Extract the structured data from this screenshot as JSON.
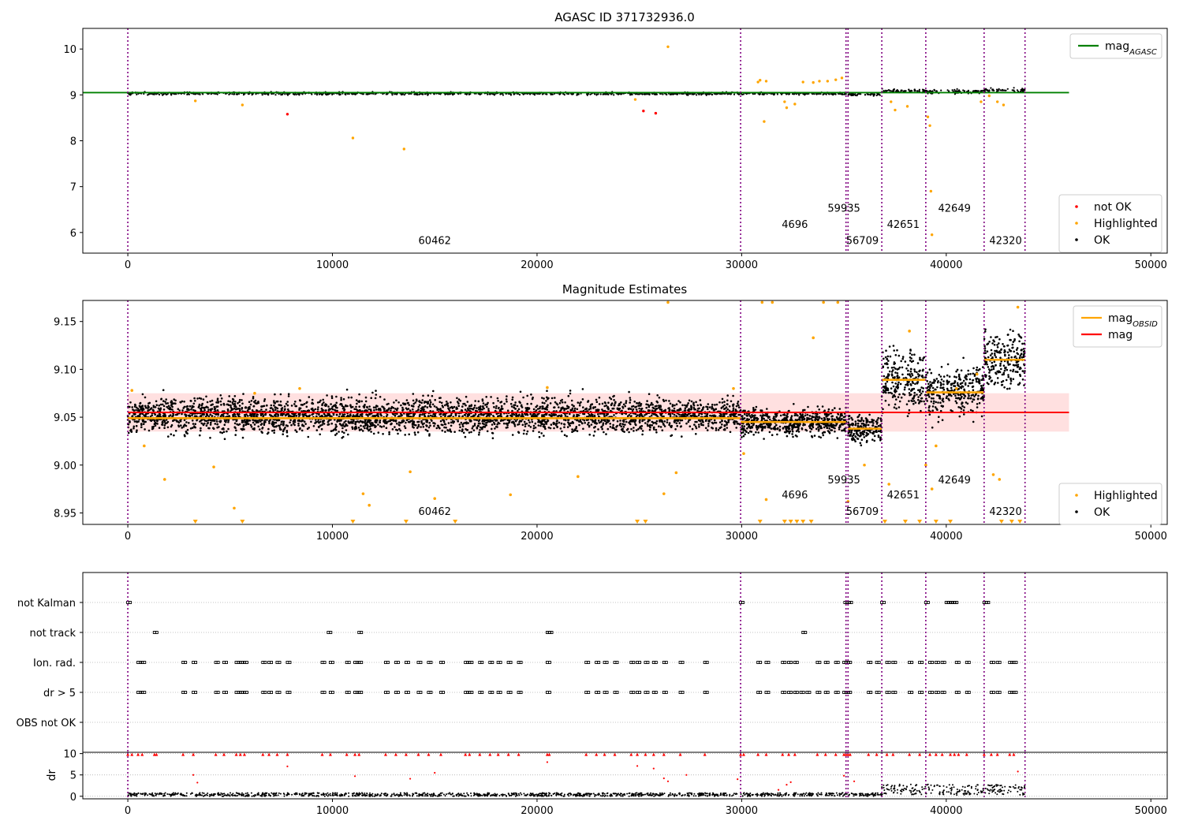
{
  "chart_data": [
    {
      "type": "scatter",
      "panel": "magnitude-agasc",
      "title": "AGASC ID 371732936.0",
      "xlim": [
        -2200,
        50800
      ],
      "ylim": [
        5.55,
        10.45
      ],
      "xticks": [
        0,
        10000,
        20000,
        30000,
        40000,
        50000
      ],
      "yticks": [
        6,
        7,
        8,
        9,
        10
      ],
      "grid": false,
      "obsid_boundaries": [
        0,
        29950,
        35100,
        35200,
        36850,
        39000,
        41850,
        43850
      ],
      "obsid_labels": [
        {
          "text": "60462",
          "x": 15000,
          "y": 5.75
        },
        {
          "text": "4696",
          "x": 32600,
          "y": 6.1
        },
        {
          "text": "59935",
          "x": 35000,
          "y": 6.45
        },
        {
          "text": "56709",
          "x": 35900,
          "y": 5.75
        },
        {
          "text": "42651",
          "x": 37900,
          "y": 6.1
        },
        {
          "text": "42649",
          "x": 40400,
          "y": 6.45
        },
        {
          "text": "42320",
          "x": 42900,
          "y": 5.75
        }
      ],
      "reference_line": {
        "name": "mag_AGASC",
        "value": 9.05,
        "x_range": [
          -2200,
          46000
        ],
        "color": "#008000"
      },
      "segments": [
        {
          "x0": 0,
          "x1": 29950,
          "level": 9.03,
          "spread": 0.03
        },
        {
          "x0": 29950,
          "x1": 35100,
          "level": 9.03,
          "spread": 0.03
        },
        {
          "x0": 35200,
          "x1": 36850,
          "level": 9.01,
          "spread": 0.03
        },
        {
          "x0": 36850,
          "x1": 39000,
          "level": 9.09,
          "spread": 0.04
        },
        {
          "x0": 39000,
          "x1": 39900,
          "level": 9.07,
          "spread": 0.04
        },
        {
          "x0": 40000,
          "x1": 41850,
          "level": 9.07,
          "spread": 0.04
        },
        {
          "x0": 41850,
          "x1": 43850,
          "level": 9.1,
          "spread": 0.04
        }
      ],
      "highlighted_points": [
        [
          3300,
          8.87
        ],
        [
          5600,
          8.78
        ],
        [
          11000,
          8.06
        ],
        [
          13500,
          7.82
        ],
        [
          24800,
          8.9
        ],
        [
          26400,
          10.05
        ],
        [
          30800,
          9.28
        ],
        [
          30900,
          9.32
        ],
        [
          31200,
          9.3
        ],
        [
          31100,
          8.42
        ],
        [
          32100,
          8.85
        ],
        [
          32200,
          8.72
        ],
        [
          32600,
          8.8
        ],
        [
          33000,
          9.28
        ],
        [
          33500,
          9.27
        ],
        [
          33800,
          9.3
        ],
        [
          34200,
          9.3
        ],
        [
          34600,
          9.33
        ],
        [
          34900,
          9.37
        ],
        [
          37300,
          8.85
        ],
        [
          37500,
          8.67
        ],
        [
          38100,
          8.75
        ],
        [
          39100,
          8.52
        ],
        [
          39200,
          8.33
        ],
        [
          39250,
          6.9
        ],
        [
          39300,
          5.95
        ],
        [
          41700,
          8.85
        ],
        [
          42100,
          8.98
        ],
        [
          42500,
          8.85
        ],
        [
          42800,
          8.78
        ]
      ],
      "not_ok_points": [
        [
          7800,
          8.58
        ],
        [
          25200,
          8.65
        ],
        [
          25800,
          8.6
        ]
      ],
      "legends": [
        {
          "placement": "upper-right",
          "entries": [
            {
              "label": "mag",
              "sub": "AGASC",
              "color": "#008000"
            }
          ]
        },
        {
          "placement": "lower-right",
          "entries": [
            {
              "label": "not OK",
              "color": "#ff0000"
            },
            {
              "label": "Highlighted",
              "color": "#ffa500"
            },
            {
              "label": "OK",
              "color": "#000000"
            }
          ]
        }
      ]
    },
    {
      "type": "scatter",
      "panel": "magnitude-estimates",
      "title": "Magnitude Estimates",
      "xlim": [
        -2200,
        50800
      ],
      "ylim": [
        8.938,
        9.172
      ],
      "xticks": [
        0,
        10000,
        20000,
        30000,
        40000,
        50000
      ],
      "yticks": [
        8.95,
        9.0,
        9.05,
        9.1,
        9.15
      ],
      "grid": false,
      "obsid_boundaries": [
        0,
        29950,
        35100,
        35200,
        36850,
        39000,
        41850,
        43850
      ],
      "obsid_labels": [
        {
          "text": "60462",
          "x": 15000,
          "y": 8.948
        },
        {
          "text": "4696",
          "x": 32600,
          "y": 8.965
        },
        {
          "text": "59935",
          "x": 35000,
          "y": 8.981
        },
        {
          "text": "56709",
          "x": 35900,
          "y": 8.948
        },
        {
          "text": "42651",
          "x": 37900,
          "y": 8.965
        },
        {
          "text": "42649",
          "x": 40400,
          "y": 8.981
        },
        {
          "text": "42320",
          "x": 42900,
          "y": 8.948
        }
      ],
      "mag_line": {
        "name": "mag",
        "value": 9.055,
        "band": [
          9.035,
          9.075
        ],
        "x_range": [
          0,
          46000
        ],
        "color": "#ff0000"
      },
      "obsid_mags": [
        {
          "x0": 0,
          "x1": 29950,
          "value": 9.049
        },
        {
          "x0": 29950,
          "x1": 35100,
          "value": 9.045
        },
        {
          "x0": 35200,
          "x1": 36850,
          "value": 9.038
        },
        {
          "x0": 36850,
          "x1": 39000,
          "value": 9.089
        },
        {
          "x0": 39000,
          "x1": 41850,
          "value": 9.076
        },
        {
          "x0": 41850,
          "x1": 43850,
          "value": 9.11
        }
      ],
      "segments": [
        {
          "x0": 0,
          "x1": 29950,
          "level": 9.052,
          "spread": 0.018
        },
        {
          "x0": 29950,
          "x1": 35100,
          "level": 9.045,
          "spread": 0.014
        },
        {
          "x0": 35200,
          "x1": 36850,
          "level": 9.038,
          "spread": 0.014
        },
        {
          "x0": 36850,
          "x1": 39000,
          "level": 9.09,
          "spread": 0.03
        },
        {
          "x0": 39000,
          "x1": 39900,
          "level": 9.075,
          "spread": 0.025
        },
        {
          "x0": 40000,
          "x1": 41850,
          "level": 9.078,
          "spread": 0.025
        },
        {
          "x0": 41850,
          "x1": 43850,
          "level": 9.11,
          "spread": 0.03
        }
      ],
      "highlighted_points": [
        [
          200,
          9.078
        ],
        [
          800,
          9.02
        ],
        [
          1800,
          8.985
        ],
        [
          4200,
          8.998
        ],
        [
          5200,
          8.955
        ],
        [
          6200,
          9.075
        ],
        [
          8400,
          9.08
        ],
        [
          11500,
          8.97
        ],
        [
          11800,
          8.958
        ],
        [
          13800,
          8.993
        ],
        [
          15000,
          8.965
        ],
        [
          18700,
          8.969
        ],
        [
          20500,
          9.081
        ],
        [
          22000,
          8.988
        ],
        [
          26200,
          8.97
        ],
        [
          26400,
          9.17
        ],
        [
          26800,
          8.992
        ],
        [
          29600,
          9.08
        ],
        [
          30100,
          9.012
        ],
        [
          31000,
          9.17
        ],
        [
          31500,
          9.17
        ],
        [
          31200,
          8.964
        ],
        [
          33500,
          9.133
        ],
        [
          34000,
          9.17
        ],
        [
          34700,
          9.17
        ],
        [
          35200,
          8.962
        ],
        [
          36000,
          9.0
        ],
        [
          37200,
          8.98
        ],
        [
          38200,
          9.14
        ],
        [
          39000,
          9.0
        ],
        [
          39300,
          8.975
        ],
        [
          39500,
          9.02
        ],
        [
          40500,
          9.08
        ],
        [
          41500,
          9.095
        ],
        [
          42300,
          8.99
        ],
        [
          42600,
          8.985
        ],
        [
          43500,
          9.165
        ]
      ],
      "clipped_low_x": [
        3300,
        5600,
        11000,
        13600,
        16000,
        24900,
        25300,
        30900,
        32100,
        32400,
        32700,
        33000,
        33400,
        37000,
        38000,
        38700,
        39500,
        40200,
        42700,
        43200,
        43600
      ],
      "legends": [
        {
          "placement": "upper-right",
          "entries": [
            {
              "label": "mag",
              "sub": "OBSID",
              "color": "#ffa500"
            },
            {
              "label": "mag",
              "color": "#ff0000"
            }
          ]
        },
        {
          "placement": "lower-right",
          "entries": [
            {
              "label": "Highlighted",
              "color": "#ffa500"
            },
            {
              "label": "OK",
              "color": "#000000"
            }
          ]
        }
      ]
    },
    {
      "type": "scatter",
      "panel": "flags",
      "xlim": [
        -2200,
        50800
      ],
      "grid": true,
      "categories": [
        "not Kalman",
        "not track",
        "Ion. rad.",
        "dr > 5",
        "OBS not OK"
      ],
      "obsid_boundaries": [
        0,
        29950,
        35100,
        35200,
        36850,
        39000,
        41850,
        43850
      ],
      "flag_x": {
        "not Kalman": [
          0,
          29950,
          35050,
          35150,
          35250,
          36850,
          39000,
          40000,
          40100,
          40200,
          40300,
          40400,
          41850,
          41950
        ],
        "not track": [
          1300,
          9800,
          11300,
          20500,
          20600,
          33000
        ],
        "Ion. rad.": [
          500,
          700,
          2700,
          3200,
          4300,
          4700,
          5300,
          5500,
          5700,
          6600,
          6900,
          7300,
          7800,
          9500,
          9900,
          10700,
          11100,
          11300,
          12600,
          13100,
          13600,
          14200,
          14700,
          15300,
          16500,
          16700,
          17200,
          17700,
          18100,
          18600,
          19100,
          20500,
          22400,
          22900,
          23300,
          23800,
          24600,
          24900,
          25300,
          25700,
          26200,
          27000,
          28200,
          30800,
          31200,
          32000,
          32300,
          32600,
          33700,
          34100,
          34600,
          35000,
          35100,
          35200,
          36200,
          36600,
          37100,
          37400,
          38200,
          38700,
          39200,
          39500,
          39800,
          40500,
          41000,
          42200,
          42500,
          43100,
          43300
        ],
        "dr > 5": [
          500,
          700,
          2700,
          3200,
          4300,
          4700,
          5300,
          5500,
          5700,
          6600,
          6900,
          7300,
          7800,
          9500,
          9900,
          10700,
          11100,
          11300,
          12600,
          13100,
          13600,
          14200,
          14700,
          15300,
          16500,
          16700,
          17200,
          17700,
          18100,
          18600,
          19100,
          20500,
          22400,
          22900,
          23300,
          23800,
          24600,
          24900,
          25300,
          25700,
          26200,
          27000,
          28200,
          30800,
          31200,
          32000,
          32300,
          32600,
          32900,
          33200,
          33700,
          34100,
          34600,
          35000,
          35100,
          35200,
          36200,
          36600,
          37100,
          37400,
          38200,
          38700,
          39200,
          39500,
          39800,
          40500,
          41000,
          42200,
          42500,
          43100,
          43300
        ],
        "OBS not OK": []
      }
    },
    {
      "type": "scatter",
      "panel": "dr",
      "ylabel": "dr",
      "xlim": [
        -2200,
        50800
      ],
      "ylim": [
        -0.6,
        10.3
      ],
      "xticks": [
        0,
        10000,
        20000,
        30000,
        40000,
        50000
      ],
      "yticks": [
        0,
        5,
        10
      ],
      "grid": true,
      "segments": [
        {
          "x0": 0,
          "x1": 29950,
          "level": 0.4,
          "spread": 0.4
        },
        {
          "x0": 29950,
          "x1": 36850,
          "level": 0.4,
          "spread": 0.4
        },
        {
          "x0": 36850,
          "x1": 39900,
          "level": 1.6,
          "spread": 1.2
        },
        {
          "x0": 40000,
          "x1": 43850,
          "level": 1.5,
          "spread": 1.2
        }
      ],
      "clipped_high_x": [
        0,
        200,
        500,
        700,
        1300,
        1400,
        2700,
        3200,
        4300,
        4700,
        5300,
        5500,
        5700,
        6600,
        6900,
        7300,
        7800,
        9500,
        9900,
        10700,
        11100,
        11300,
        12600,
        13100,
        13600,
        14200,
        14700,
        15300,
        16500,
        16700,
        17200,
        17700,
        18100,
        18600,
        19100,
        20500,
        20600,
        22400,
        22900,
        23300,
        23800,
        24600,
        24900,
        25300,
        25700,
        26200,
        27000,
        28200,
        29950,
        30100,
        30800,
        31200,
        32000,
        32300,
        32600,
        33700,
        34100,
        34600,
        35000,
        35100,
        35200,
        35300,
        36200,
        36600,
        37100,
        37400,
        38200,
        38700,
        39200,
        39500,
        39800,
        40200,
        40400,
        40600,
        41000,
        41850,
        42200,
        42500,
        43100,
        43300
      ],
      "scattered_points": [
        [
          3200,
          5
        ],
        [
          3400,
          3.2
        ],
        [
          7800,
          7
        ],
        [
          11100,
          4.7
        ],
        [
          13800,
          4.1
        ],
        [
          15000,
          5.5
        ],
        [
          20500,
          8
        ],
        [
          24900,
          7.1
        ],
        [
          25700,
          6.5
        ],
        [
          26200,
          4.2
        ],
        [
          26400,
          3.5
        ],
        [
          27300,
          5
        ],
        [
          29800,
          4
        ],
        [
          31800,
          1.5
        ],
        [
          32200,
          2.7
        ],
        [
          32400,
          3.3
        ],
        [
          35000,
          4.8
        ],
        [
          35500,
          3.5
        ],
        [
          43500,
          5.8
        ]
      ]
    }
  ]
}
